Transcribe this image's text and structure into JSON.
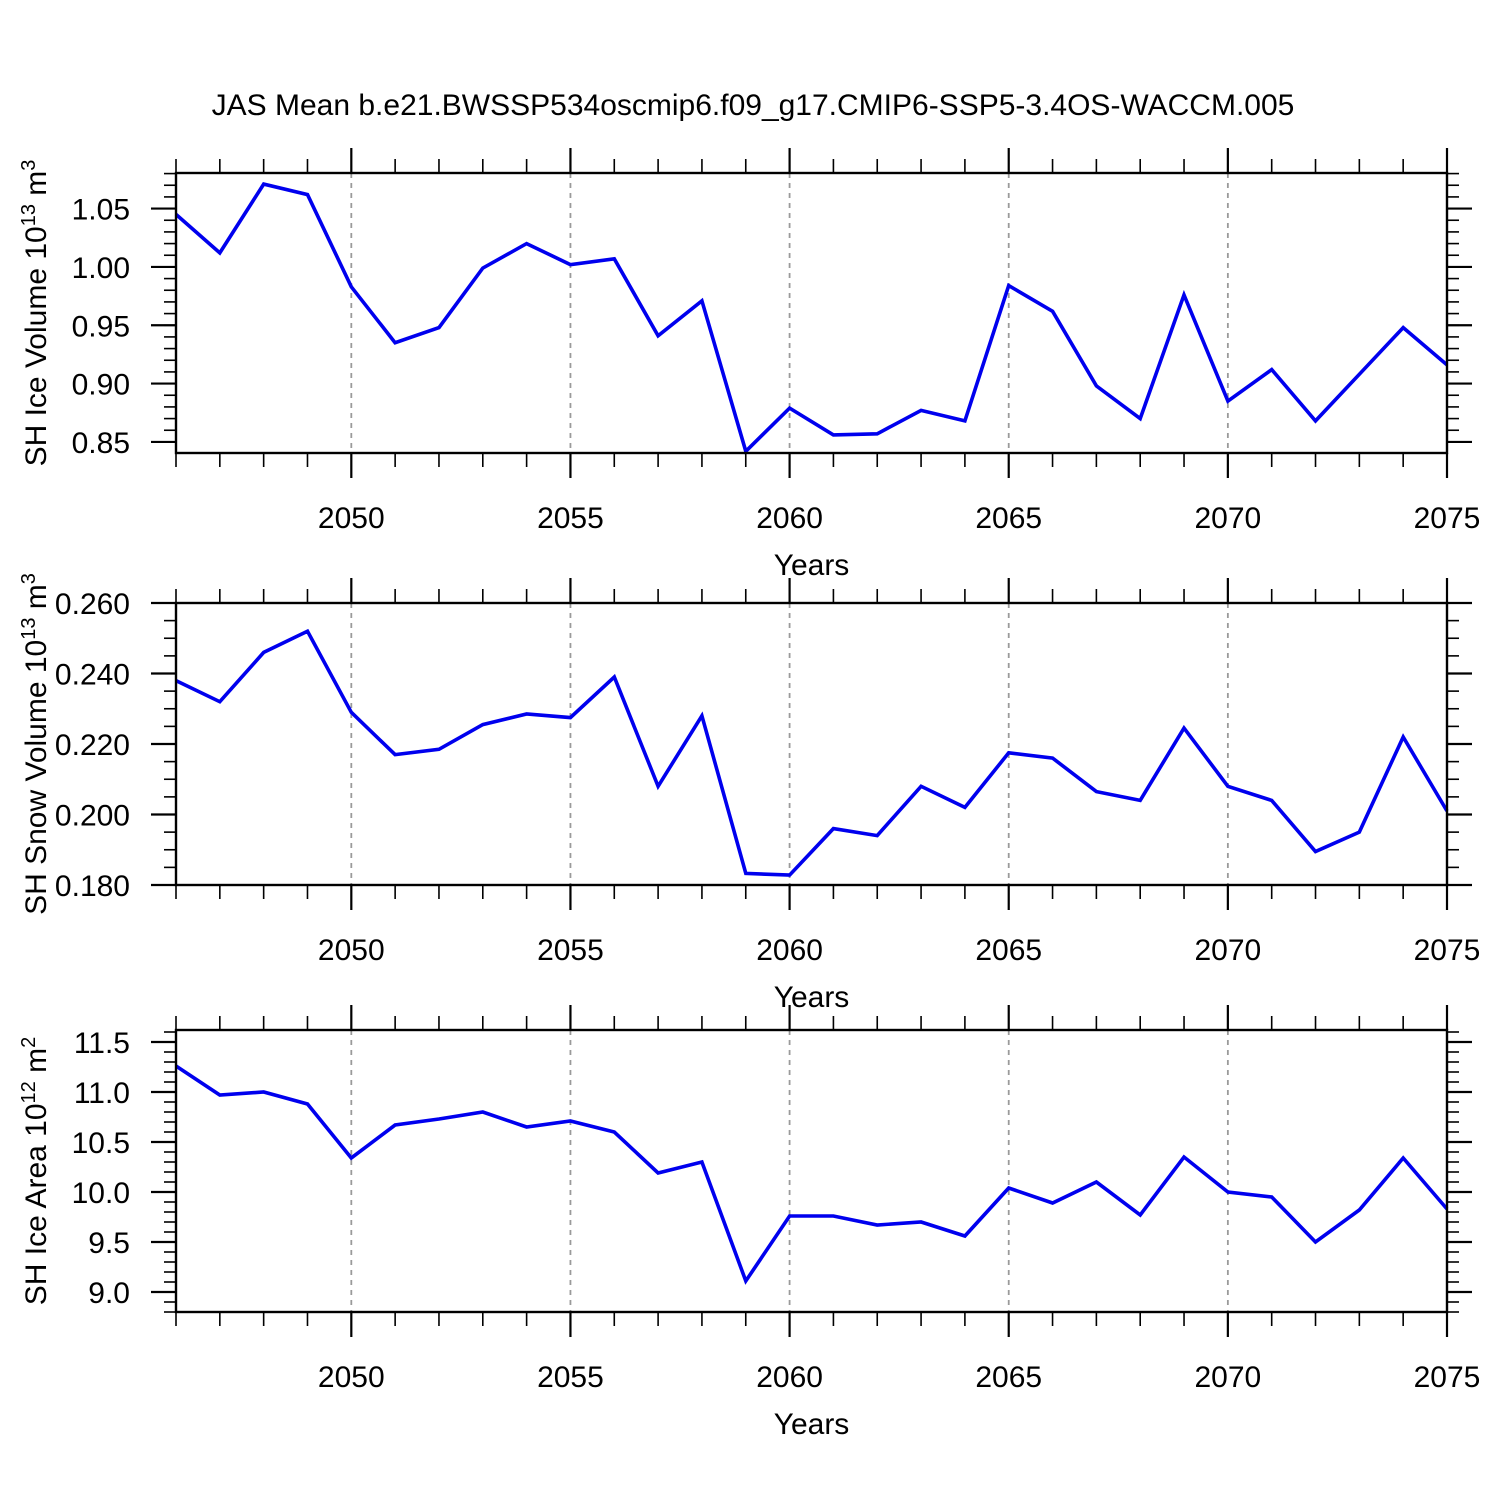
{
  "title": "JAS Mean b.e21.BWSSP534oscmip6.f09_g17.CMIP6-SSP5-3.4OS-WACCM.005",
  "colors": {
    "line": "#0000ee",
    "grid": "#9a9a9a",
    "axis": "#000000",
    "background": "#ffffff"
  },
  "x_axis": {
    "label": "Years",
    "min": 2046,
    "max": 2075,
    "major_ticks": [
      2050,
      2055,
      2060,
      2065,
      2070,
      2075
    ],
    "tick_labels": [
      "2050",
      "2055",
      "2060",
      "2065",
      "2070",
      "2075"
    ],
    "minor_step": 1
  },
  "years": [
    2046,
    2047,
    2048,
    2049,
    2050,
    2051,
    2052,
    2053,
    2054,
    2055,
    2056,
    2057,
    2058,
    2059,
    2060,
    2061,
    2062,
    2063,
    2064,
    2065,
    2066,
    2067,
    2068,
    2069,
    2070,
    2071,
    2072,
    2073,
    2074,
    2075
  ],
  "chart_data": [
    {
      "type": "line",
      "name": "sh-ice-volume",
      "ylabel": "SH Ice Volume 10^13 m^3",
      "ylabel_segments": [
        {
          "text": "SH Ice Volume 10"
        },
        {
          "text": "13",
          "sup": true
        },
        {
          "text": " m"
        },
        {
          "text": "3",
          "sup": true
        }
      ],
      "xlabel": "Years",
      "xlim": [
        2046,
        2075
      ],
      "ylim": [
        0.8405,
        1.0805
      ],
      "y_major_ticks": [
        0.85,
        0.9,
        0.95,
        1.0,
        1.05
      ],
      "y_tick_labels": [
        "0.85",
        "0.90",
        "0.95",
        "1.00",
        "1.05"
      ],
      "y_minor_step": 0.01,
      "grid": "vertical-dashed",
      "values": [
        1.045,
        1.012,
        1.071,
        1.062,
        0.983,
        0.935,
        0.948,
        0.999,
        1.02,
        1.002,
        1.007,
        0.941,
        0.971,
        0.842,
        0.879,
        0.856,
        0.857,
        0.877,
        0.868,
        0.984,
        0.962,
        0.898,
        0.87,
        0.976,
        0.885,
        0.912,
        0.868,
        0.908,
        0.948,
        0.916
      ]
    },
    {
      "type": "line",
      "name": "sh-snow-volume",
      "ylabel": "SH Snow Volume 10^13 m^3",
      "ylabel_segments": [
        {
          "text": "SH Snow Volume 10"
        },
        {
          "text": "13",
          "sup": true
        },
        {
          "text": " m"
        },
        {
          "text": "3",
          "sup": true
        }
      ],
      "xlabel": "Years",
      "xlim": [
        2046,
        2075
      ],
      "ylim": [
        0.18,
        0.26
      ],
      "y_major_ticks": [
        0.18,
        0.2,
        0.22,
        0.24,
        0.26
      ],
      "y_tick_labels": [
        "0.180",
        "0.200",
        "0.220",
        "0.240",
        "0.260"
      ],
      "y_minor_step": 0.005,
      "grid": "vertical-dashed",
      "values": [
        0.238,
        0.232,
        0.246,
        0.252,
        0.229,
        0.217,
        0.2185,
        0.2255,
        0.2285,
        0.2275,
        0.239,
        0.208,
        0.228,
        0.1833,
        0.1828,
        0.196,
        0.194,
        0.208,
        0.202,
        0.2175,
        0.216,
        0.2065,
        0.204,
        0.2245,
        0.208,
        0.204,
        0.1895,
        0.195,
        0.222,
        0.201
      ]
    },
    {
      "type": "line",
      "name": "sh-ice-area",
      "ylabel": "SH Ice Area 10^12 m^2",
      "ylabel_segments": [
        {
          "text": "SH Ice Area 10"
        },
        {
          "text": "12",
          "sup": true
        },
        {
          "text": " m"
        },
        {
          "text": "2",
          "sup": true
        }
      ],
      "xlabel": "Years",
      "xlim": [
        2046,
        2075
      ],
      "ylim": [
        8.8,
        11.62
      ],
      "y_major_ticks": [
        9.0,
        9.5,
        10.0,
        10.5,
        11.0,
        11.5
      ],
      "y_tick_labels": [
        "9.0",
        "9.5",
        "10.0",
        "10.5",
        "11.0",
        "11.5"
      ],
      "y_minor_step": 0.1,
      "grid": "vertical-dashed",
      "values": [
        11.26,
        10.97,
        11.0,
        10.88,
        10.34,
        10.67,
        10.73,
        10.8,
        10.65,
        10.71,
        10.6,
        10.19,
        10.3,
        9.11,
        9.76,
        9.76,
        9.67,
        9.7,
        9.56,
        10.04,
        9.89,
        10.1,
        9.77,
        10.35,
        10.0,
        9.95,
        9.5,
        9.82,
        10.34,
        9.83
      ]
    }
  ]
}
